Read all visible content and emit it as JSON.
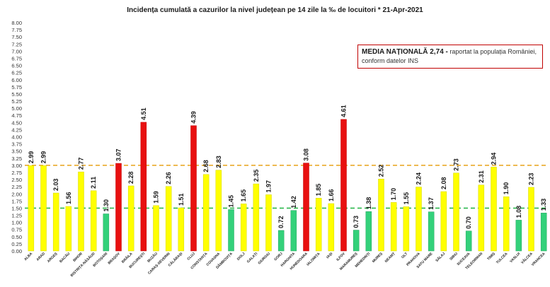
{
  "chart_data": {
    "type": "bar",
    "title": "Incidența cumulată  a cazurilor  la nivel județean pe 14 zile la ‰ de locuitori *   21-Apr-2021",
    "ylim": [
      0,
      8
    ],
    "yticks": [
      "0.00",
      "0.25",
      "0.50",
      "0.75",
      "1.00",
      "1.25",
      "1.50",
      "1.75",
      "2.00",
      "2.25",
      "2.50",
      "2.75",
      "3.00",
      "3.25",
      "3.50",
      "3.75",
      "4.00",
      "4.25",
      "4.50",
      "4.75",
      "5.00",
      "5.25",
      "5.50",
      "5.75",
      "6.00",
      "6.25",
      "6.50",
      "6.75",
      "7.00",
      "7.25",
      "7.50",
      "7.75",
      "8.00"
    ],
    "categories": [
      "ALBA",
      "ARAD",
      "ARGEȘ",
      "BACĂU",
      "BIHOR",
      "BISTRIȚA-NĂSĂUD",
      "BOTOȘANI",
      "BRAȘOV",
      "BRĂILA",
      "BUCUREȘTI",
      "BUZĂU",
      "CARAȘ-SEVERIN",
      "CĂLĂRAȘI",
      "CLUJ",
      "CONSTANȚA",
      "COVASNA",
      "DÂMBOVIȚA",
      "DOLJ",
      "GALAȚI",
      "GIURGIU",
      "GORJ",
      "HARGHITA",
      "HUNEDOARA",
      "IALOMIȚA",
      "IAȘI",
      "ILFOV",
      "MARAMUREȘ",
      "MEHEDINȚI",
      "MUREȘ",
      "NEAMȚ",
      "OLT",
      "PRAHOVA",
      "SATU MARE",
      "SĂLAJ",
      "SIBIU",
      "SUCEAVA",
      "TELEORMAN",
      "TIMIȘ",
      "TULCEA",
      "VASLUI",
      "VÂLCEA",
      "VRANCEA"
    ],
    "values": [
      2.99,
      2.99,
      2.03,
      1.56,
      2.77,
      2.11,
      1.3,
      3.07,
      2.28,
      4.51,
      1.59,
      2.26,
      1.51,
      4.39,
      2.68,
      2.83,
      1.45,
      1.65,
      2.35,
      1.97,
      0.72,
      1.42,
      3.08,
      1.85,
      1.66,
      4.61,
      0.73,
      1.38,
      2.52,
      1.7,
      1.55,
      2.24,
      1.37,
      2.08,
      2.73,
      0.7,
      2.31,
      2.94,
      1.9,
      1.08,
      2.23,
      1.33
    ],
    "value_labels": [
      "2.99",
      "2.99",
      "2.03",
      "1.56",
      "2.77",
      "2.11",
      "1.30",
      "3.07",
      "2.28",
      "4.51",
      "1.59",
      "2.26",
      "1.51",
      "4.39",
      "2.68",
      "2.83",
      "1.45",
      "1.65",
      "2.35",
      "1.97",
      "0.72",
      "1.42",
      "3.08",
      "1.85",
      "1.66",
      "4.61",
      "0.73",
      "1.38",
      "2.52",
      "1.70",
      "1.55",
      "2.24",
      "1.37",
      "2.08",
      "2.73",
      "0.70",
      "2.31",
      "2.94",
      "1.90",
      "1.08",
      "2.23",
      "1.33"
    ],
    "reference_lines": [
      {
        "value": 3.0,
        "color": "#e8a317",
        "style": "dashed"
      },
      {
        "value": 1.5,
        "color": "#2db84d",
        "style": "dashed"
      }
    ],
    "colors": {
      "high": "#e81010",
      "medium": "#ffff00",
      "low": "#33d17a",
      "medium_edge": "#d6d600"
    },
    "legend": "none",
    "grid": false,
    "xlabel": "",
    "ylabel": ""
  },
  "media_box": {
    "strong": "MEDIA NAȚIONALĂ 2,74 -",
    "text_line1": " raportat la populația României,",
    "text_line2": "conform datelor INS"
  }
}
